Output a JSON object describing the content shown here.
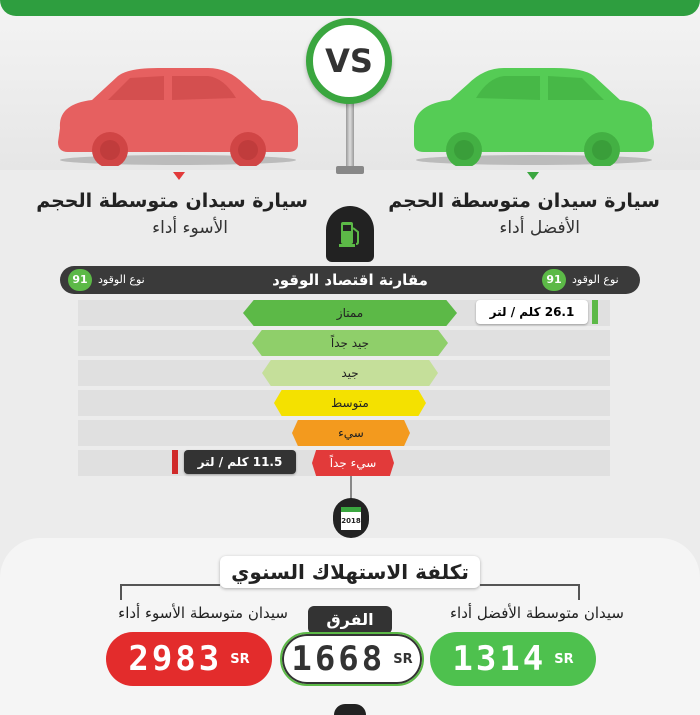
{
  "vs_label": "VS",
  "cars": {
    "best": {
      "title": "سيارة سيدان متوسطة الحجم",
      "subtitle": "الأفضل أداء",
      "color": "#4fcc52"
    },
    "worst": {
      "title": "سيارة سيدان متوسطة الحجم",
      "subtitle": "الأسوء أداء",
      "color": "#e85a5a"
    }
  },
  "fuel_economy": {
    "title": "مقارنة اقتصاد الوقود",
    "fuel_type_label_right": "نوع الوقود",
    "fuel_type_label_left": "نوع الوقود",
    "octane_right": "91",
    "octane_left": "91",
    "ratings": [
      {
        "label": "ممتاز",
        "color": "#5cb947"
      },
      {
        "label": "جيد جداً",
        "color": "#8fcf6a"
      },
      {
        "label": "جيد",
        "color": "#c5df9a"
      },
      {
        "label": "متوسط",
        "color": "#f4e100"
      },
      {
        "label": "سيء",
        "color": "#f39a1e"
      },
      {
        "label": "سيء جداً",
        "color": "#e23a3a"
      }
    ],
    "best_value": "26.1 كلم / لتر",
    "worst_value": "11.5 كلم / لتر",
    "best_rating_index": 0,
    "worst_rating_index": 5
  },
  "year_badge": "2018",
  "annual_cost": {
    "title": "تكلفة الاستهلاك السنوي",
    "best_label": "سيدان متوسطة الأفضل أداء",
    "worst_label": "سيدان متوسطة الأسوء أداء",
    "difference_label": "الفرق",
    "best_value": "1314",
    "worst_value": "2983",
    "difference_value": "1668",
    "currency": "SR"
  }
}
